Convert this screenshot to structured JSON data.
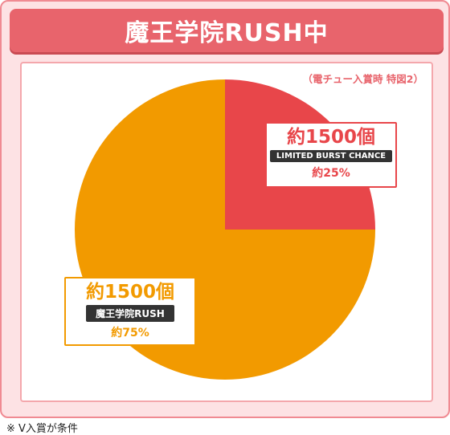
{
  "title": "魔王学院RUSH中",
  "subtitle": "（電チュー入賞時 特図2）",
  "footnote": "※ V入賞が条件",
  "colors": {
    "red_slice": "#e8464a",
    "orange_slice": "#f29a00",
    "accent": "#e8646c"
  },
  "chart_data": {
    "type": "pie",
    "title": "魔王学院RUSH中",
    "subtitle": "（電チュー入賞時 特図2）",
    "slices": [
      {
        "name": "LIMITED BURST CHANCE",
        "count_label": "約1500個",
        "percent_label": "約25%",
        "value": 25,
        "color": "#e8464a"
      },
      {
        "name": "魔王学院RUSH",
        "count_label": "約1500個",
        "percent_label": "約75%",
        "value": 75,
        "color": "#f29a00"
      }
    ]
  }
}
